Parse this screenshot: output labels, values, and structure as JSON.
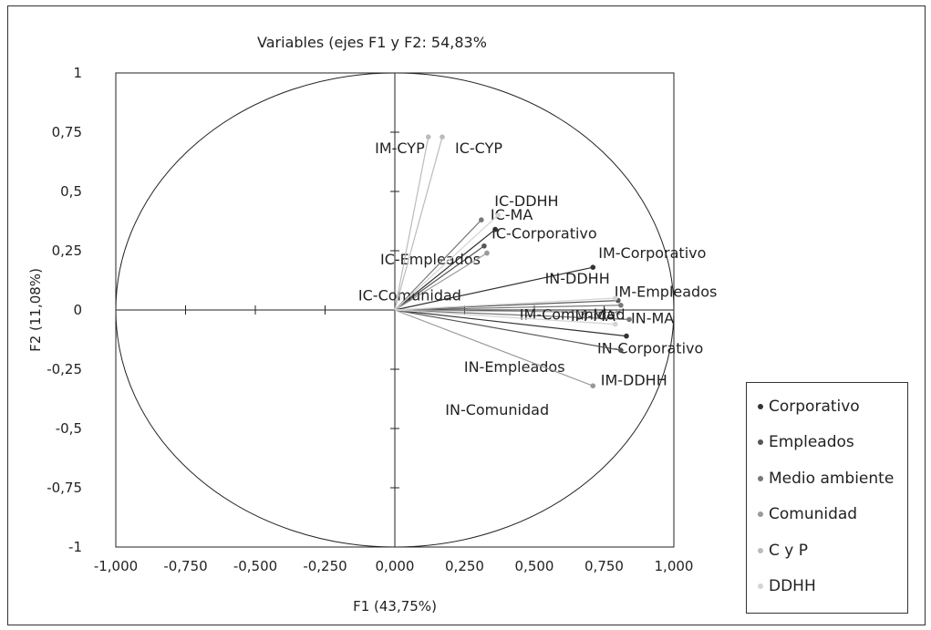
{
  "chart_data": {
    "type": "scatter",
    "title": "Variables (ejes F1 y F2: 54,83%",
    "xlabel": "F1 (43,75%)",
    "ylabel": "F2 (11,08%)",
    "xlim": [
      -1,
      1
    ],
    "ylim": [
      -1,
      1
    ],
    "x_tick_labels": [
      "-1,000",
      "-0,750",
      "-0,500",
      "-0,250",
      "0,000",
      "0,250",
      "0,500",
      "0,750",
      "1,000"
    ],
    "y_tick_labels": [
      "1",
      "0,75",
      "0,5",
      "0,25",
      "0",
      "-0,25",
      "-0,5",
      "-0,75",
      "-1"
    ],
    "unit_circle": true,
    "vectors_from_origin": true,
    "grid": false,
    "legend_position": "bottom-right",
    "series": [
      {
        "name": "Corporativo",
        "color": "#333333",
        "points": [
          {
            "label": "IC-Corporativo",
            "x": 0.36,
            "y": 0.34
          },
          {
            "label": "IM-Corporativo",
            "x": 0.71,
            "y": 0.18
          },
          {
            "label": "IN-Corporativo",
            "x": 0.83,
            "y": -0.11
          }
        ]
      },
      {
        "name": "Empleados",
        "color": "#555555",
        "points": [
          {
            "label": "IC-Empleados",
            "x": 0.32,
            "y": 0.27
          },
          {
            "label": "IM-Empleados",
            "x": 0.8,
            "y": 0.04
          },
          {
            "label": "IN-Empleados",
            "x": 0.81,
            "y": -0.17
          }
        ]
      },
      {
        "name": "Medio ambiente",
        "color": "#777777",
        "points": [
          {
            "label": "IC-MA",
            "x": 0.31,
            "y": 0.38
          },
          {
            "label": "IM-MA",
            "x": 0.81,
            "y": 0.02
          },
          {
            "label": "IN-MA",
            "x": 0.84,
            "y": -0.04
          }
        ]
      },
      {
        "name": "Comunidad",
        "color": "#999999",
        "points": [
          {
            "label": "IC-Comunidad",
            "x": 0.33,
            "y": 0.24
          },
          {
            "label": "IM-Comunidad",
            "x": 0.8,
            "y": -0.01
          },
          {
            "label": "IN-Comunidad",
            "x": 0.71,
            "y": -0.32
          }
        ]
      },
      {
        "name": "C y P",
        "color": "#bbbbbb",
        "points": [
          {
            "label": "IM-CYP",
            "x": 0.12,
            "y": 0.73
          },
          {
            "label": "IC-CYP",
            "x": 0.17,
            "y": 0.73
          }
        ]
      },
      {
        "name": "DDHH",
        "color": "#d4d4d4",
        "points": [
          {
            "label": "IC-DDHH",
            "x": 0.37,
            "y": 0.4
          },
          {
            "label": "IM-DDHH",
            "x": 0.79,
            "y": -0.06
          },
          {
            "label": "IN-DDHH",
            "x": 0.79,
            "y": 0.05
          }
        ]
      }
    ]
  }
}
